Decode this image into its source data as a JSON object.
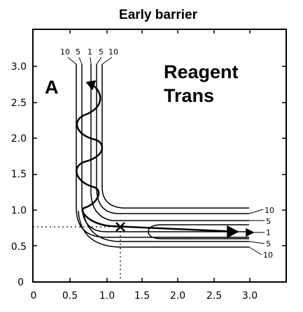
{
  "title": "Early barrier",
  "panel_label": "A",
  "annotation": {
    "line1": "Reagent",
    "line2": "Trans"
  },
  "x_ticks": [
    "0",
    "0.5",
    "1.0",
    "1.5",
    "2.0",
    "2.5",
    "3.0"
  ],
  "y_ticks": [
    "0",
    "0.5",
    "1.0",
    "1.5",
    "2.0",
    "2.5",
    "3.0"
  ],
  "contour_labels_top": [
    "10",
    "5",
    "1",
    "5",
    "10"
  ],
  "contour_labels_right": [
    "10",
    "5",
    "1",
    "5",
    "10"
  ],
  "saddle_point": {
    "x": 1.22,
    "y": 0.78
  },
  "axis_range": {
    "x": [
      0,
      3.4
    ],
    "y": [
      0,
      3.4
    ]
  }
}
